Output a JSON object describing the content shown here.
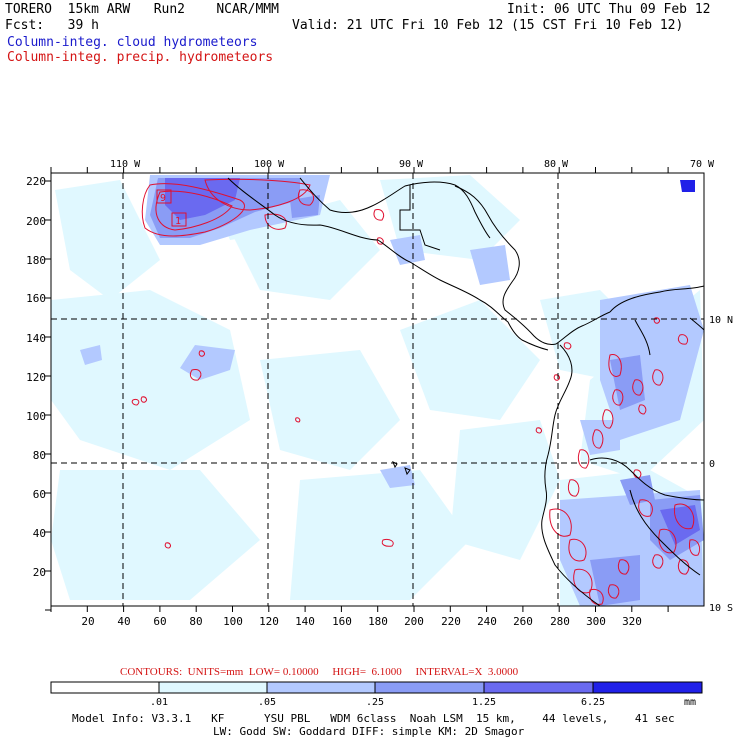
{
  "header": {
    "left_line1": "TORERO  15km ARW   Run2    NCAR/MMM",
    "left_line2": "Fcst:   39 h",
    "right_line1": "Init: 06 UTC Thu 09 Feb 12",
    "right_line2": "Valid: 21 UTC Fri 10 Feb 12 (15 CST Fri 10 Feb 12)",
    "field_cloud": "Column-integ. cloud hydrometeors",
    "field_precip": "Column-integ. precip. hydrometeors"
  },
  "map": {
    "top_lon_labels": [
      "110 W",
      "100 W",
      "90 W",
      "80 W",
      "70 W"
    ],
    "right_lat_labels": [
      "10 N",
      "0",
      "10 S"
    ],
    "y_grid_labels": [
      "220",
      "200",
      "180",
      "160",
      "140",
      "120",
      "100",
      "80",
      "60",
      "40",
      "20"
    ],
    "x_grid_labels": [
      "20",
      "40",
      "60",
      "80",
      "100",
      "120",
      "140",
      "160",
      "180",
      "200",
      "220",
      "240",
      "260",
      "280",
      "300",
      "320"
    ],
    "highs_lows": [
      "9",
      "1"
    ],
    "colors": {
      "cloud_light": "#e0f8ff",
      "cloud_mid1": "#b3c9ff",
      "cloud_mid2": "#8a9cf5",
      "cloud_dark": "#6a6af0",
      "cloud_darkest": "#2020e8",
      "precip_contour": "#e01030",
      "coast": "#000000"
    }
  },
  "contours_line": "CONTOURS:  UNITS=mm  LOW= 0.10000     HIGH=  6.1000     INTERVAL=X  3.0000",
  "colorbar": {
    "labels": [
      ".01",
      ".05",
      ".25",
      "1.25",
      "6.25"
    ],
    "unit": "mm",
    "colors": [
      "#ffffff",
      "#e0f8ff",
      "#b3c9ff",
      "#8a9cf5",
      "#6a6af0",
      "#2020e8"
    ]
  },
  "footer": {
    "line1": "Model Info: V3.3.1   KF      YSU PBL   WDM 6class  Noah LSM  15 km,    44 levels,    41 sec",
    "line2": "LW: Godd SW: Goddard DIFF: simple KM: 2D Smagor"
  }
}
